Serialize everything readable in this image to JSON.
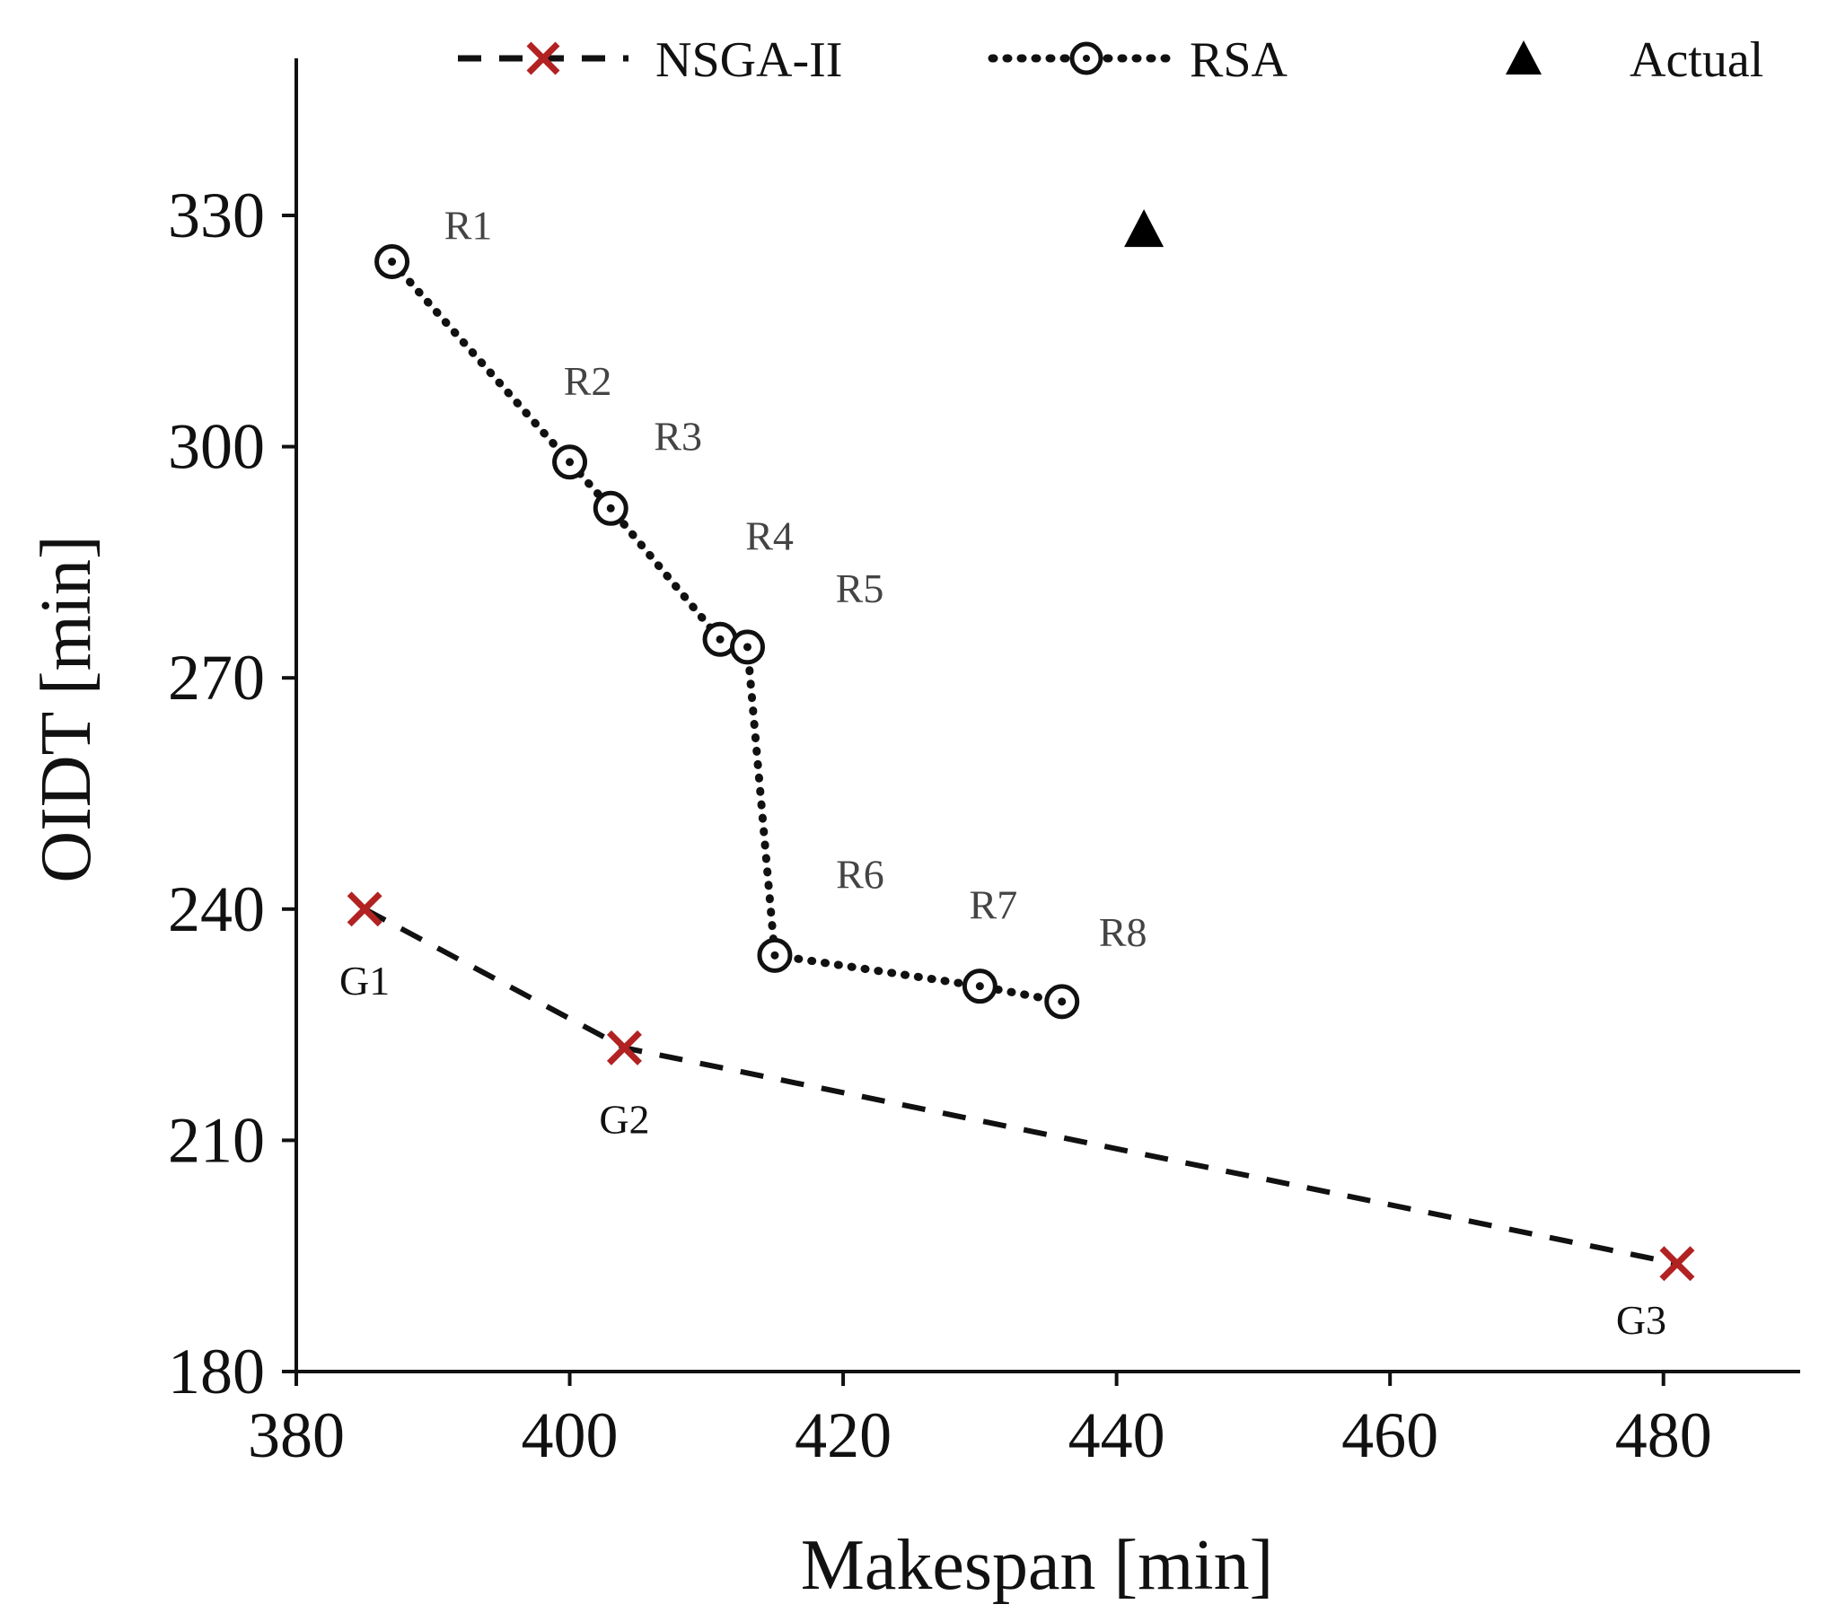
{
  "chart_data": {
    "type": "scatter",
    "title": "",
    "xlabel": "Makespan [min]",
    "ylabel": "OIDT [min]",
    "xlim": [
      380,
      490
    ],
    "ylim": [
      180,
      350
    ],
    "xticks": [
      380,
      400,
      420,
      440,
      460,
      480
    ],
    "yticks": [
      180,
      210,
      240,
      270,
      300,
      330
    ],
    "grid": false,
    "legend_position": "top",
    "colors": {
      "axis": "#111111",
      "nsga": "#b22222",
      "nsga_line": "#111111",
      "rsa": "#111111",
      "actual": "#000000",
      "rsa_label": "#444444",
      "nsga_label": "#111111"
    },
    "series": [
      {
        "name": "NSGA-II",
        "marker": "x",
        "line": "dashed",
        "points": [
          {
            "label": "G1",
            "x": 385,
            "y": 240
          },
          {
            "label": "G2",
            "x": 404,
            "y": 222
          },
          {
            "label": "G3",
            "x": 481,
            "y": 194
          }
        ]
      },
      {
        "name": "RSA",
        "marker": "circle-dot",
        "line": "dotted",
        "points": [
          {
            "label": "R1",
            "x": 387,
            "y": 324
          },
          {
            "label": "R2",
            "x": 400,
            "y": 298
          },
          {
            "label": "R3",
            "x": 403,
            "y": 292
          },
          {
            "label": "R4",
            "x": 411,
            "y": 275
          },
          {
            "label": "R5",
            "x": 413,
            "y": 274
          },
          {
            "label": "R6",
            "x": 415,
            "y": 234
          },
          {
            "label": "R7",
            "x": 430,
            "y": 230
          },
          {
            "label": "R8",
            "x": 436,
            "y": 228
          }
        ]
      },
      {
        "name": "Actual",
        "marker": "triangle",
        "line": "none",
        "points": [
          {
            "label": "",
            "x": 442,
            "y": 328
          }
        ]
      }
    ]
  }
}
